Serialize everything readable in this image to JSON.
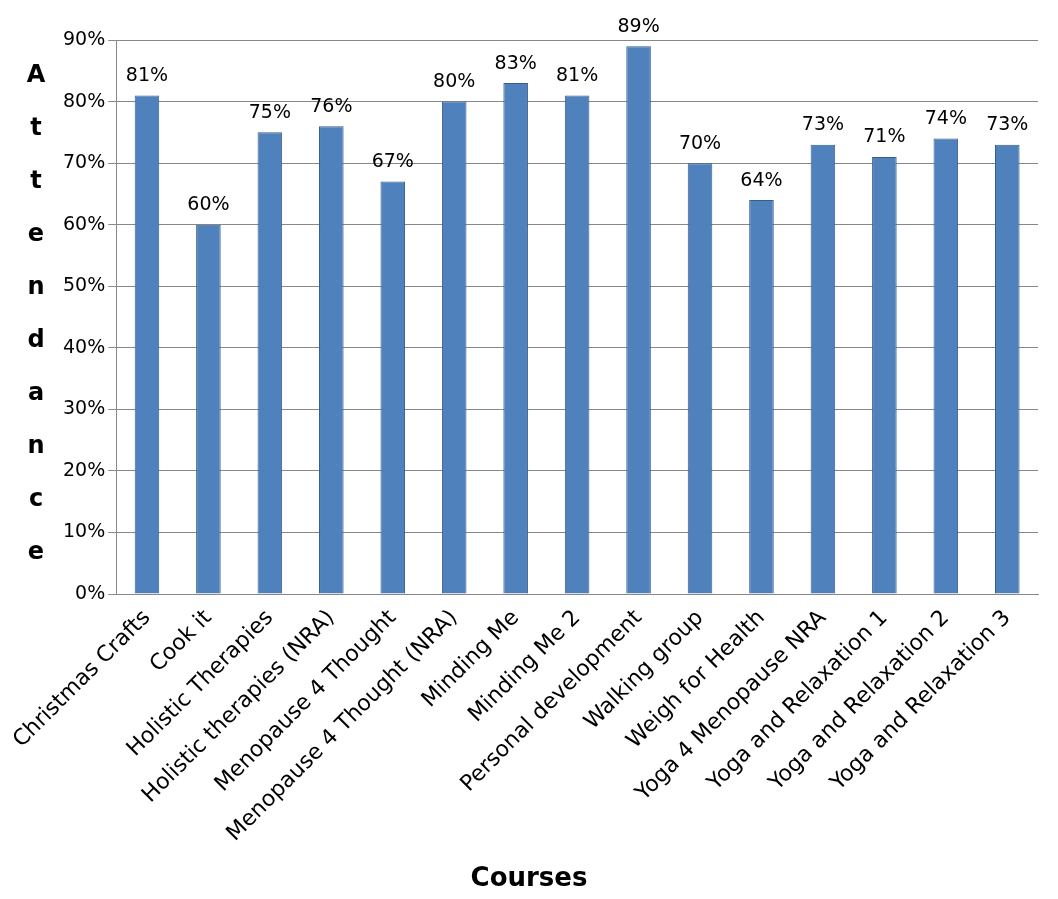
{
  "chart_data": {
    "type": "bar",
    "xlabel": "Courses",
    "ylabel": "Attendance",
    "categories": [
      "Christmas Crafts",
      "Cook it",
      "Holistic Therapies",
      "Holistic therapies (NRA)",
      "Menopause 4 Thought",
      "Menopause 4 Thought (NRA)",
      "Minding Me",
      "Minding Me 2",
      "Personal development",
      "Walking group",
      "Weigh for Health",
      "Yoga 4 Menopause NRA",
      "Yoga and Relaxation 1",
      "Yoga and Relaxation 2",
      "Yoga and Relaxation 3"
    ],
    "values": [
      81,
      60,
      75,
      76,
      67,
      80,
      83,
      81,
      89,
      70,
      64,
      73,
      71,
      74,
      73
    ],
    "value_labels": [
      "81%",
      "60%",
      "75%",
      "76%",
      "67%",
      "80%",
      "83%",
      "81%",
      "89%",
      "70%",
      "64%",
      "73%",
      "71%",
      "74%",
      "73%"
    ],
    "color": "#4f81bd",
    "ylim": [
      0,
      90
    ],
    "yticks": [
      {
        "value": 0,
        "label": "0%"
      },
      {
        "value": 10,
        "label": "10%"
      },
      {
        "value": 20,
        "label": "20%"
      },
      {
        "value": 30,
        "label": "30%"
      },
      {
        "value": 40,
        "label": "40%"
      },
      {
        "value": 50,
        "label": "50%"
      },
      {
        "value": 60,
        "label": "60%"
      },
      {
        "value": 70,
        "label": "70%"
      },
      {
        "value": 80,
        "label": "80%"
      },
      {
        "value": 90,
        "label": "90%"
      }
    ],
    "grid": "y"
  }
}
